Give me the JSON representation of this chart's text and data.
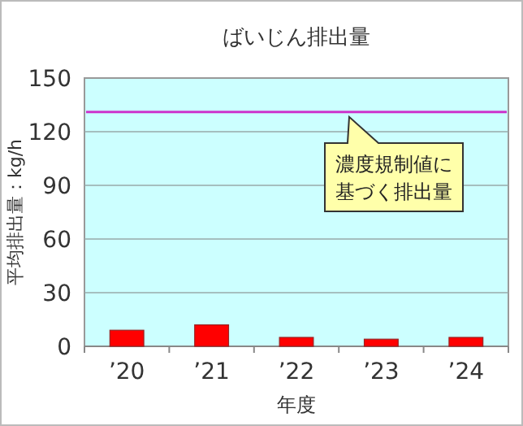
{
  "chart_data": {
    "type": "bar",
    "title": "ばいじん排出量",
    "xlabel": "年度",
    "ylabel": "平均排出量：kg/h",
    "categories": [
      "’20",
      "’21",
      "’22",
      "’23",
      "’24"
    ],
    "values": [
      9,
      12,
      5,
      4,
      5
    ],
    "color": "#ff0000",
    "ylim": [
      0,
      150
    ],
    "yticks": [
      0,
      30,
      60,
      90,
      120,
      150
    ],
    "grid": "y",
    "ref_lines": [
      {
        "axis": "y",
        "value": 131,
        "label": "濃度規制値に基づく排出量",
        "color": "#cc33cc"
      }
    ]
  }
}
